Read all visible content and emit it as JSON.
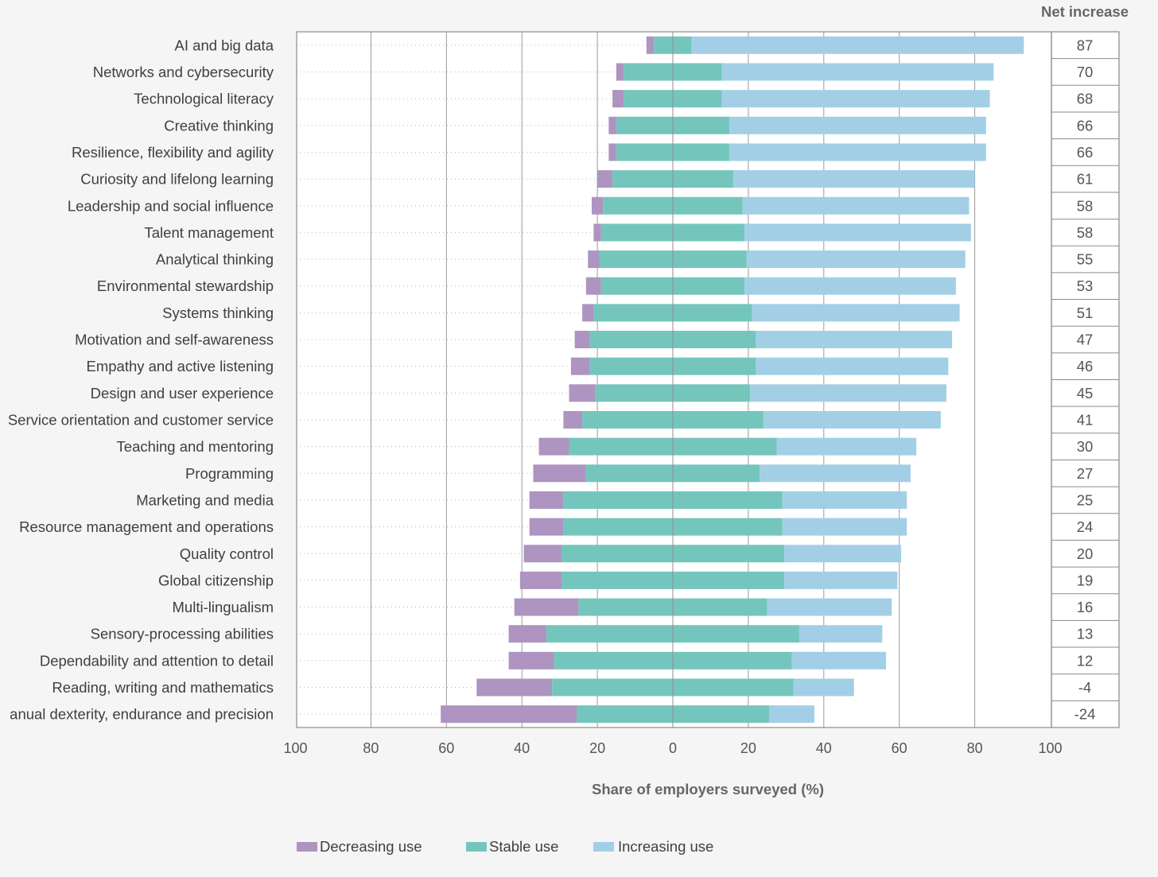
{
  "chart_data": {
    "type": "bar",
    "stacked": true,
    "orientation": "horizontal",
    "xlabel": "Share of employers surveyed (%)",
    "xlim": [
      -100,
      100
    ],
    "x_ticks": [
      "100",
      "80",
      "60",
      "40",
      "20",
      "0",
      "20",
      "40",
      "60",
      "80",
      "100"
    ],
    "net_header": "Net increase",
    "categories": [
      "AI and big data",
      "Networks and cybersecurity",
      "Technological literacy",
      "Creative thinking",
      "Resilience, flexibility and agility",
      "Curiosity and lifelong learning",
      "Leadership and social influence",
      "Talent management",
      "Analytical thinking",
      "Environmental stewardship",
      "Systems thinking",
      "Motivation and self-awareness",
      "Empathy and active listening",
      "Design and user experience",
      "Service orientation and customer service",
      "Teaching and mentoring",
      "Programming",
      "Marketing and media",
      "Resource management and operations",
      "Quality control",
      "Global citizenship",
      "Multi-lingualism",
      "Sensory-processing abilities",
      "Dependability and attention to detail",
      "Reading, writing and mathematics",
      "anual dexterity, endurance and precision"
    ],
    "net_increase": [
      "87",
      "70",
      "68",
      "66",
      "66",
      "61",
      "58",
      "58",
      "55",
      "53",
      "51",
      "47",
      "46",
      "45",
      "41",
      "30",
      "27",
      "25",
      "24",
      "20",
      "19",
      "16",
      "13",
      "12",
      "-4",
      "-24"
    ],
    "series": [
      {
        "name": "Decreasing use",
        "color": "#ae94c0",
        "values": [
          2,
          2,
          3,
          2,
          2,
          4,
          3,
          2,
          3,
          4,
          3,
          4,
          5,
          7,
          5,
          8,
          14,
          9,
          9,
          10,
          11,
          17,
          10,
          12,
          20,
          36
        ]
      },
      {
        "name": "Stable use",
        "color": "#74c6bd",
        "values": [
          10,
          26,
          26,
          30,
          30,
          32,
          37,
          38,
          39,
          38,
          42,
          44,
          44,
          41,
          48,
          55,
          46,
          58,
          58,
          59,
          59,
          50,
          67,
          63,
          64,
          51
        ]
      },
      {
        "name": "Increasing use",
        "color": "#a3cfe6",
        "values": [
          88,
          72,
          71,
          68,
          68,
          64,
          60,
          60,
          58,
          56,
          55,
          52,
          51,
          52,
          47,
          37,
          40,
          33,
          33,
          31,
          30,
          33,
          22,
          25,
          16,
          12
        ]
      }
    ]
  }
}
